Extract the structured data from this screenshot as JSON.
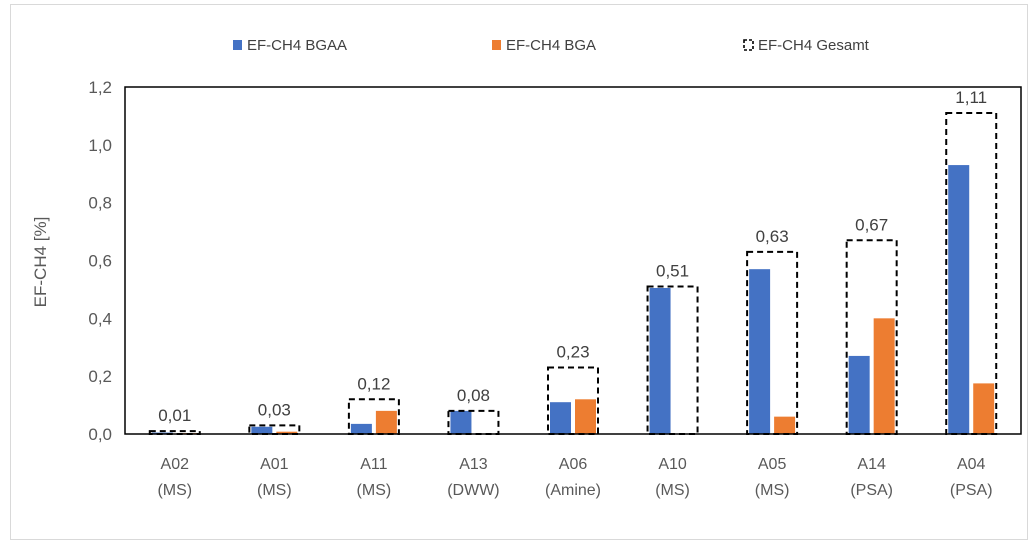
{
  "chart_data": {
    "type": "bar",
    "title": "",
    "xlabel": "",
    "ylabel": "EF-CH4 [%]",
    "ylim": [
      0,
      1.2
    ],
    "yticks": [
      "0,0",
      "0,2",
      "0,4",
      "0,6",
      "0,8",
      "1,0",
      "1,2"
    ],
    "ytick_values": [
      0,
      0.2,
      0.4,
      0.6,
      0.8,
      1.0,
      1.2
    ],
    "categories": [
      [
        "A02",
        "(MS)"
      ],
      [
        "A01",
        "(MS)"
      ],
      [
        "A11",
        "(MS)"
      ],
      [
        "A13",
        "(DWW)"
      ],
      [
        "A06",
        "(Amine)"
      ],
      [
        "A10",
        "(MS)"
      ],
      [
        "A05",
        "(MS)"
      ],
      [
        "A14",
        "(PSA)"
      ],
      [
        "A04",
        "(PSA)"
      ]
    ],
    "series": [
      {
        "name": "EF-CH4 BGAA",
        "color": "#4472c4",
        "values": [
          0.005,
          0.025,
          0.035,
          0.08,
          0.11,
          0.505,
          0.57,
          0.27,
          0.93
        ]
      },
      {
        "name": "EF-CH4 BGA",
        "color": "#ed7d31",
        "values": [
          0.003,
          0.008,
          0.08,
          0.0,
          0.12,
          0.0,
          0.06,
          0.4,
          0.175
        ]
      },
      {
        "name": "EF-CH4 Gesamt",
        "style": "dashed-outline",
        "color": "#000000",
        "values": [
          0.01,
          0.03,
          0.12,
          0.08,
          0.23,
          0.51,
          0.63,
          0.67,
          1.11
        ],
        "labels": [
          "0,01",
          "0,03",
          "0,12",
          "0,08",
          "0,23",
          "0,51",
          "0,63",
          "0,67",
          "1,11"
        ]
      }
    ],
    "legend_position": "top",
    "grid": false
  }
}
